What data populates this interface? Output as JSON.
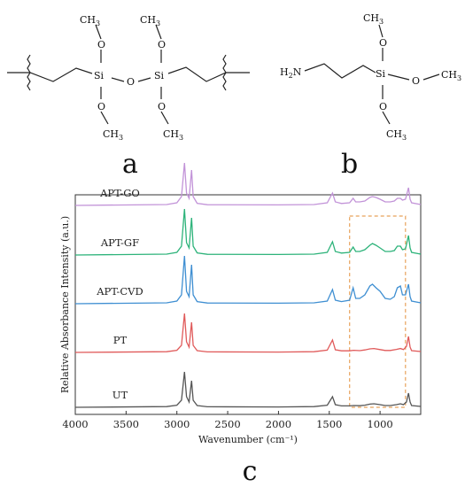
{
  "structures": {
    "a": {
      "label": "a",
      "methyl": "CH3",
      "silicon": "Si",
      "oxygen": "O"
    },
    "b": {
      "label": "b",
      "amine": "H2N",
      "methyl": "CH3",
      "silicon": "Si",
      "oxygen": "O"
    }
  },
  "chart_data": {
    "type": "line",
    "panel_label": "c",
    "title": "",
    "xlabel": "Wavenumber (cm⁻¹)",
    "ylabel": "Relative Absorbance Intensity (a.u.)",
    "xlim": [
      4000,
      600
    ],
    "x_reversed": true,
    "x_ticks": [
      4000,
      3500,
      3000,
      2500,
      2000,
      1500,
      1000
    ],
    "grid": false,
    "highlight_region": {
      "x_from": 1300,
      "x_to": 750,
      "style": "dashed",
      "color": "#E8A25B"
    },
    "series": [
      {
        "name": "UT",
        "color": "#555555",
        "offset": 0,
        "points": [
          [
            4000,
            0
          ],
          [
            3100,
            0.4
          ],
          [
            3000,
            1.2
          ],
          [
            2955,
            4
          ],
          [
            2925,
            20
          ],
          [
            2905,
            6
          ],
          [
            2880,
            3
          ],
          [
            2855,
            15
          ],
          [
            2840,
            4
          ],
          [
            2800,
            1
          ],
          [
            2700,
            0.3
          ],
          [
            2000,
            0.2
          ],
          [
            1650,
            0.4
          ],
          [
            1520,
            1.2
          ],
          [
            1468,
            6
          ],
          [
            1440,
            1.5
          ],
          [
            1380,
            0.8
          ],
          [
            1300,
            0.8
          ],
          [
            1260,
            1
          ],
          [
            1200,
            0.9
          ],
          [
            1150,
            1.2
          ],
          [
            1100,
            1.8
          ],
          [
            1060,
            2
          ],
          [
            1000,
            1.5
          ],
          [
            950,
            1
          ],
          [
            900,
            1
          ],
          [
            840,
            1.5
          ],
          [
            800,
            2
          ],
          [
            770,
            1.5
          ],
          [
            740,
            3
          ],
          [
            720,
            8
          ],
          [
            705,
            3
          ],
          [
            690,
            1
          ],
          [
            600,
            0.5
          ]
        ]
      },
      {
        "name": "PT",
        "color": "#E05A5A",
        "offset": 62,
        "points": [
          [
            4000,
            0
          ],
          [
            3100,
            0.4
          ],
          [
            3000,
            1.2
          ],
          [
            2955,
            4
          ],
          [
            2925,
            22
          ],
          [
            2905,
            6
          ],
          [
            2880,
            3
          ],
          [
            2855,
            17
          ],
          [
            2840,
            4
          ],
          [
            2800,
            1
          ],
          [
            2700,
            0.3
          ],
          [
            2000,
            0.2
          ],
          [
            1650,
            0.4
          ],
          [
            1520,
            1.3
          ],
          [
            1468,
            7
          ],
          [
            1440,
            1.5
          ],
          [
            1380,
            0.9
          ],
          [
            1300,
            0.9
          ],
          [
            1260,
            1.2
          ],
          [
            1200,
            1
          ],
          [
            1150,
            1.4
          ],
          [
            1100,
            2
          ],
          [
            1060,
            2.2
          ],
          [
            1000,
            1.6
          ],
          [
            950,
            1.1
          ],
          [
            900,
            1.1
          ],
          [
            840,
            1.7
          ],
          [
            800,
            2.2
          ],
          [
            770,
            1.6
          ],
          [
            740,
            3.4
          ],
          [
            720,
            9
          ],
          [
            705,
            3
          ],
          [
            690,
            1
          ],
          [
            600,
            0.5
          ]
        ]
      },
      {
        "name": "APT-CVD",
        "color": "#3F8FD2",
        "offset": 117,
        "points": [
          [
            4000,
            0
          ],
          [
            3100,
            0.5
          ],
          [
            3000,
            1.5
          ],
          [
            2955,
            5
          ],
          [
            2925,
            27
          ],
          [
            2905,
            7
          ],
          [
            2880,
            4
          ],
          [
            2855,
            22
          ],
          [
            2840,
            5
          ],
          [
            2800,
            1.2
          ],
          [
            2700,
            0.4
          ],
          [
            2000,
            0.3
          ],
          [
            1650,
            0.5
          ],
          [
            1520,
            1.5
          ],
          [
            1468,
            8
          ],
          [
            1440,
            2
          ],
          [
            1380,
            1.2
          ],
          [
            1300,
            2
          ],
          [
            1265,
            9
          ],
          [
            1240,
            3
          ],
          [
            1200,
            3
          ],
          [
            1150,
            5
          ],
          [
            1100,
            10
          ],
          [
            1075,
            11
          ],
          [
            1040,
            9
          ],
          [
            1000,
            7
          ],
          [
            950,
            3
          ],
          [
            900,
            2.5
          ],
          [
            860,
            4
          ],
          [
            830,
            9
          ],
          [
            800,
            10
          ],
          [
            780,
            5
          ],
          [
            750,
            5
          ],
          [
            720,
            11
          ],
          [
            705,
            4
          ],
          [
            690,
            1.5
          ],
          [
            600,
            0.5
          ]
        ]
      },
      {
        "name": "APT-GF",
        "color": "#2DB37A",
        "offset": 172,
        "points": [
          [
            4000,
            0
          ],
          [
            3100,
            0.5
          ],
          [
            3000,
            1.5
          ],
          [
            2955,
            5
          ],
          [
            2925,
            26
          ],
          [
            2905,
            7
          ],
          [
            2880,
            4
          ],
          [
            2855,
            21
          ],
          [
            2840,
            5
          ],
          [
            2800,
            1.2
          ],
          [
            2700,
            0.4
          ],
          [
            2000,
            0.3
          ],
          [
            1650,
            0.5
          ],
          [
            1520,
            1.5
          ],
          [
            1468,
            7.5
          ],
          [
            1440,
            2
          ],
          [
            1380,
            1.1
          ],
          [
            1300,
            1.5
          ],
          [
            1265,
            4.5
          ],
          [
            1240,
            2
          ],
          [
            1200,
            2
          ],
          [
            1150,
            3
          ],
          [
            1100,
            5.5
          ],
          [
            1075,
            6.5
          ],
          [
            1040,
            5.5
          ],
          [
            1000,
            4
          ],
          [
            950,
            2
          ],
          [
            900,
            2
          ],
          [
            860,
            2.5
          ],
          [
            830,
            5
          ],
          [
            800,
            5
          ],
          [
            780,
            3
          ],
          [
            750,
            3.5
          ],
          [
            720,
            11
          ],
          [
            705,
            4
          ],
          [
            690,
            1.5
          ],
          [
            600,
            0.5
          ]
        ]
      },
      {
        "name": "APT-GO",
        "color": "#C293D8",
        "offset": 228,
        "points": [
          [
            4000,
            0
          ],
          [
            3100,
            0.5
          ],
          [
            3000,
            1.5
          ],
          [
            2955,
            5
          ],
          [
            2925,
            24
          ],
          [
            2905,
            7
          ],
          [
            2880,
            4
          ],
          [
            2855,
            20
          ],
          [
            2840,
            5
          ],
          [
            2800,
            1.2
          ],
          [
            2700,
            0.4
          ],
          [
            2000,
            0.3
          ],
          [
            1650,
            0.5
          ],
          [
            1520,
            1.5
          ],
          [
            1468,
            7
          ],
          [
            1440,
            2
          ],
          [
            1380,
            1.1
          ],
          [
            1300,
            1.5
          ],
          [
            1265,
            4
          ],
          [
            1240,
            2
          ],
          [
            1200,
            2
          ],
          [
            1150,
            2.5
          ],
          [
            1100,
            4.5
          ],
          [
            1075,
            5
          ],
          [
            1040,
            4.5
          ],
          [
            1000,
            3.5
          ],
          [
            950,
            2
          ],
          [
            900,
            2
          ],
          [
            860,
            2.5
          ],
          [
            830,
            4
          ],
          [
            800,
            4
          ],
          [
            780,
            3
          ],
          [
            750,
            3.5
          ],
          [
            720,
            10
          ],
          [
            705,
            3.5
          ],
          [
            690,
            1.5
          ],
          [
            600,
            0.5
          ]
        ]
      }
    ]
  }
}
